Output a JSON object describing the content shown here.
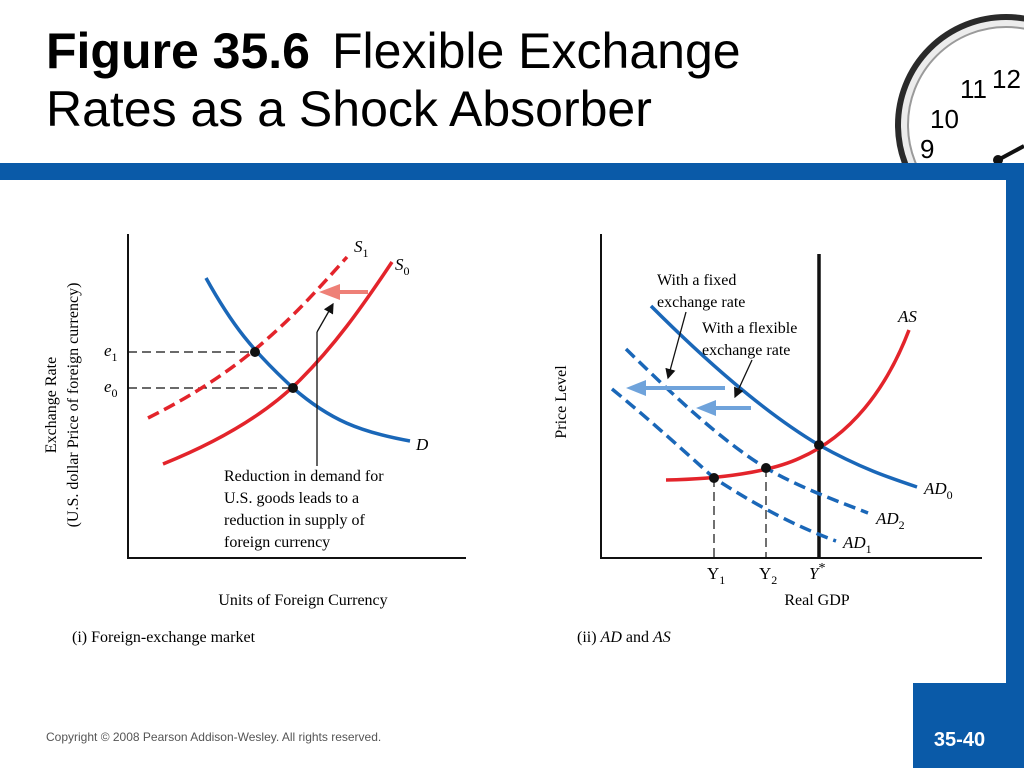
{
  "slide": {
    "title_bold": "Figure 35.6",
    "title_rest_line1": "Flexible Exchange",
    "title_line2": "Rates as a Shock Absorber",
    "copyright": "Copyright © 2008 Pearson Addison-Wesley. All rights reserved.",
    "page_number": "35-40",
    "accent_color": "#0a5aa8"
  },
  "clock": {
    "numerals": [
      "12",
      "11",
      "10",
      "9"
    ]
  },
  "panel_i": {
    "caption": "(i) Foreign-exchange market",
    "x_axis_label": "Units of Foreign Currency",
    "y_axis_label_line1": "Exchange Rate",
    "y_axis_label_line2": "(U.S. dollar Price of foreign currency)",
    "tick_e1_base": "e",
    "tick_e1_sub": "1",
    "tick_e0_base": "e",
    "tick_e0_sub": "0",
    "curve_s1_base": "S",
    "curve_s1_sub": "1",
    "curve_s0_base": "S",
    "curve_s0_sub": "0",
    "curve_d": "D",
    "annotation": [
      "Reduction in demand for",
      "U.S. goods leads to a",
      "reduction in supply of",
      "foreign currency"
    ]
  },
  "panel_ii": {
    "caption_prefix": "(ii) ",
    "caption_ad": "AD",
    "caption_and": " and ",
    "caption_as": "AS",
    "x_axis_label": "Real GDP",
    "y_axis_label": "Price Level",
    "curve_as": "AS",
    "curve_ad0_base": "AD",
    "curve_ad0_sub": "0",
    "curve_ad1_base": "AD",
    "curve_ad1_sub": "1",
    "curve_ad2_base": "AD",
    "curve_ad2_sub": "2",
    "tick_y1_base": "Y",
    "tick_y1_sub": "1",
    "tick_y2_base": "Y",
    "tick_y2_sub": "2",
    "tick_ystar_base": "Y",
    "tick_ystar_sup": "*",
    "label_fixed": [
      "With a fixed",
      "exchange rate"
    ],
    "label_flexible": [
      "With a flexible",
      "exchange rate"
    ]
  },
  "colors": {
    "supply_red": "#e3242b",
    "demand_blue": "#1a67b8",
    "arrow_light_red": "#ee8077",
    "arrow_light_blue": "#6fa3db"
  }
}
